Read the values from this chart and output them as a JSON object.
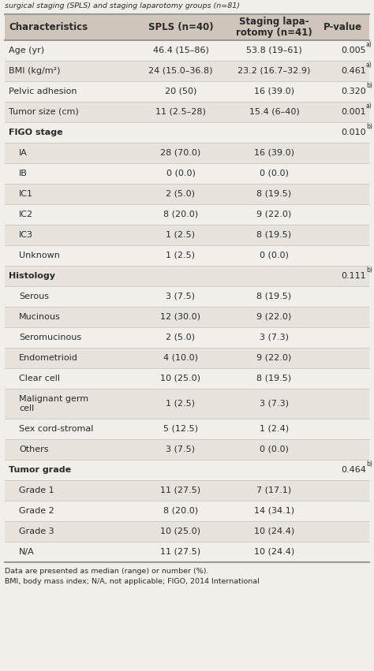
{
  "title_line": "surgical staging (SPLS) and staging laparotomy groups (n=81)",
  "headers": [
    "Characteristics",
    "SPLS (n=40)",
    "Staging lapa-\nrotomy (n=41)",
    "P-value"
  ],
  "rows": [
    {
      "char": "Age (yr)",
      "spls": "46.4 (15–86)",
      "lapa": "53.8 (19–61)",
      "pval": "0.005",
      "pval_sup": "a)",
      "indent": false,
      "section": false,
      "bg": "white"
    },
    {
      "char": "BMI (kg/m²)",
      "spls": "24 (15.0–36.8)",
      "lapa": "23.2 (16.7–32.9)",
      "pval": "0.461",
      "pval_sup": "a)",
      "indent": false,
      "section": false,
      "bg": "shaded"
    },
    {
      "char": "Pelvic adhesion",
      "spls": "20 (50)",
      "lapa": "16 (39.0)",
      "pval": "0.320",
      "pval_sup": "b)",
      "indent": false,
      "section": false,
      "bg": "white"
    },
    {
      "char": "Tumor size (cm)",
      "spls": "11 (2.5–28)",
      "lapa": "15.4 (6–40)",
      "pval": "0.001",
      "pval_sup": "a)",
      "indent": false,
      "section": false,
      "bg": "shaded"
    },
    {
      "char": "FIGO stage",
      "spls": "",
      "lapa": "",
      "pval": "0.010",
      "pval_sup": "b)",
      "indent": false,
      "section": true,
      "bg": "white"
    },
    {
      "char": "IA",
      "spls": "28 (70.0)",
      "lapa": "16 (39.0)",
      "pval": "",
      "pval_sup": "",
      "indent": true,
      "section": false,
      "bg": "shaded"
    },
    {
      "char": "IB",
      "spls": "0 (0.0)",
      "lapa": "0 (0.0)",
      "pval": "",
      "pval_sup": "",
      "indent": true,
      "section": false,
      "bg": "white"
    },
    {
      "char": "IC1",
      "spls": "2 (5.0)",
      "lapa": "8 (19.5)",
      "pval": "",
      "pval_sup": "",
      "indent": true,
      "section": false,
      "bg": "shaded"
    },
    {
      "char": "IC2",
      "spls": "8 (20.0)",
      "lapa": "9 (22.0)",
      "pval": "",
      "pval_sup": "",
      "indent": true,
      "section": false,
      "bg": "white"
    },
    {
      "char": "IC3",
      "spls": "1 (2.5)",
      "lapa": "8 (19.5)",
      "pval": "",
      "pval_sup": "",
      "indent": true,
      "section": false,
      "bg": "shaded"
    },
    {
      "char": "Unknown",
      "spls": "1 (2.5)",
      "lapa": "0 (0.0)",
      "pval": "",
      "pval_sup": "",
      "indent": true,
      "section": false,
      "bg": "white"
    },
    {
      "char": "Histology",
      "spls": "",
      "lapa": "",
      "pval": "0.111",
      "pval_sup": "b)",
      "indent": false,
      "section": true,
      "bg": "shaded"
    },
    {
      "char": "Serous",
      "spls": "3 (7.5)",
      "lapa": "8 (19.5)",
      "pval": "",
      "pval_sup": "",
      "indent": true,
      "section": false,
      "bg": "white"
    },
    {
      "char": "Mucinous",
      "spls": "12 (30.0)",
      "lapa": "9 (22.0)",
      "pval": "",
      "pval_sup": "",
      "indent": true,
      "section": false,
      "bg": "shaded"
    },
    {
      "char": "Seromucinous",
      "spls": "2 (5.0)",
      "lapa": "3 (7.3)",
      "pval": "",
      "pval_sup": "",
      "indent": true,
      "section": false,
      "bg": "white"
    },
    {
      "char": "Endometrioid",
      "spls": "4 (10.0)",
      "lapa": "9 (22.0)",
      "pval": "",
      "pval_sup": "",
      "indent": true,
      "section": false,
      "bg": "shaded"
    },
    {
      "char": "Clear cell",
      "spls": "10 (25.0)",
      "lapa": "8 (19.5)",
      "pval": "",
      "pval_sup": "",
      "indent": true,
      "section": false,
      "bg": "white"
    },
    {
      "char": "Malignant germ\ncell",
      "spls": "1 (2.5)",
      "lapa": "3 (7.3)",
      "pval": "",
      "pval_sup": "",
      "indent": true,
      "section": false,
      "bg": "shaded",
      "tall": true
    },
    {
      "char": "Sex cord-stromal",
      "spls": "5 (12.5)",
      "lapa": "1 (2.4)",
      "pval": "",
      "pval_sup": "",
      "indent": true,
      "section": false,
      "bg": "white"
    },
    {
      "char": "Others",
      "spls": "3 (7.5)",
      "lapa": "0 (0.0)",
      "pval": "",
      "pval_sup": "",
      "indent": true,
      "section": false,
      "bg": "shaded"
    },
    {
      "char": "Tumor grade",
      "spls": "",
      "lapa": "",
      "pval": "0.464",
      "pval_sup": "b)",
      "indent": false,
      "section": true,
      "bg": "white"
    },
    {
      "char": "Grade 1",
      "spls": "11 (27.5)",
      "lapa": "7 (17.1)",
      "pval": "",
      "pval_sup": "",
      "indent": true,
      "section": false,
      "bg": "shaded"
    },
    {
      "char": "Grade 2",
      "spls": "8 (20.0)",
      "lapa": "14 (34.1)",
      "pval": "",
      "pval_sup": "",
      "indent": true,
      "section": false,
      "bg": "white"
    },
    {
      "char": "Grade 3",
      "spls": "10 (25.0)",
      "lapa": "10 (24.4)",
      "pval": "",
      "pval_sup": "",
      "indent": true,
      "section": false,
      "bg": "shaded"
    },
    {
      "char": "N/A",
      "spls": "11 (27.5)",
      "lapa": "10 (24.4)",
      "pval": "",
      "pval_sup": "",
      "indent": true,
      "section": false,
      "bg": "white"
    }
  ],
  "footnote1": "Data are presented as median (range) or number (%).",
  "footnote2": "BMI, body mass index; N/A, not applicable; FIGO, 2014 International",
  "bg_shaded": "#e8e2dc",
  "bg_white": "#f2eeea",
  "bg_header": "#cfc5bb",
  "text_color": "#2a2a2a",
  "line_color_heavy": "#999999",
  "line_color_light": "#c8c0b8"
}
